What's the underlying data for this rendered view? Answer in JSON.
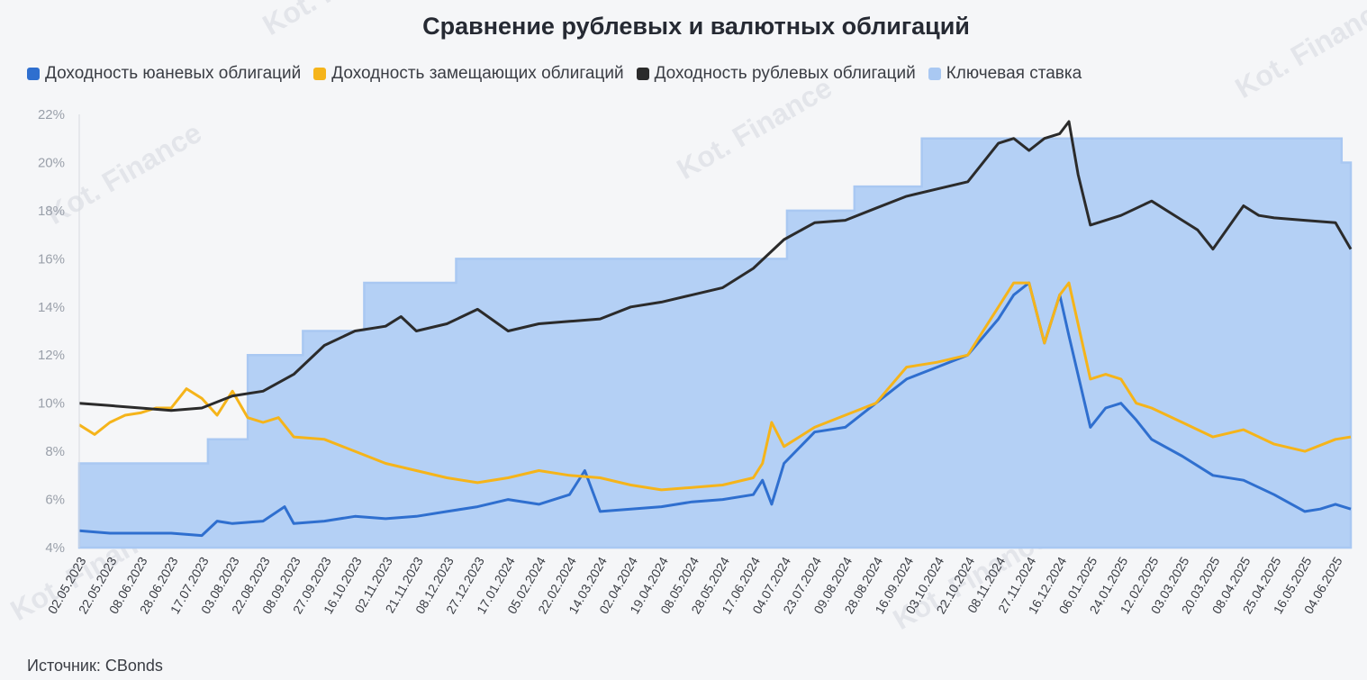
{
  "chart_data": {
    "type": "line",
    "title": "Сравнение рублевых и валютных облигаций",
    "source": "Источник: CBonds",
    "watermark": "Kot. Finance",
    "ylim": [
      4,
      22
    ],
    "y_ticks": [
      "4%",
      "6%",
      "8%",
      "10%",
      "12%",
      "14%",
      "16%",
      "18%",
      "20%",
      "22%"
    ],
    "x_tick_labels": [
      "02.05.2023",
      "22.05.2023",
      "08.06.2023",
      "28.06.2023",
      "17.07.2023",
      "03.08.2023",
      "22.08.2023",
      "08.09.2023",
      "27.09.2023",
      "16.10.2023",
      "02.11.2023",
      "21.11.2023",
      "08.12.2023",
      "27.12.2023",
      "17.01.2024",
      "05.02.2024",
      "22.02.2024",
      "14.03.2024",
      "02.04.2024",
      "19.04.2024",
      "08.05.2024",
      "28.05.2024",
      "17.06.2024",
      "04.07.2024",
      "23.07.2024",
      "09.08.2024",
      "28.08.2024",
      "16.09.2024",
      "03.10.2024",
      "22.10.2024",
      "08.11.2024",
      "27.11.2024",
      "16.12.2024",
      "06.01.2025",
      "24.01.2025",
      "12.02.2025",
      "03.03.2025",
      "20.03.2025",
      "08.04.2025",
      "25.04.2025",
      "16.05.2025",
      "04.06.2025"
    ],
    "x_index_max": 41.5,
    "legend_position": "top-left",
    "grid": false,
    "series": [
      {
        "name": "Доходность юаневых облигаций",
        "color": "#2f6fcf",
        "x": [
          0,
          1,
          2,
          3,
          4,
          4.5,
          5,
          6,
          6.7,
          7,
          8,
          9,
          10,
          11,
          12,
          13,
          14,
          15,
          16,
          16.5,
          17,
          18,
          19,
          20,
          21,
          22,
          22.3,
          22.6,
          23,
          24,
          25,
          26,
          27,
          28,
          29,
          30,
          30.5,
          31,
          31.5,
          32,
          32.3,
          33,
          33.5,
          34,
          34.5,
          35,
          36,
          37,
          38,
          39,
          40,
          40.5,
          41,
          41.5
        ],
        "values": [
          4.7,
          4.6,
          4.6,
          4.6,
          4.5,
          5.1,
          5.0,
          5.1,
          5.7,
          5.0,
          5.1,
          5.3,
          5.2,
          5.3,
          5.5,
          5.7,
          6.0,
          5.8,
          6.2,
          7.2,
          5.5,
          5.6,
          5.7,
          5.9,
          6.0,
          6.2,
          6.8,
          5.8,
          7.5,
          8.8,
          9.0,
          10.0,
          11.0,
          11.5,
          12.0,
          13.5,
          14.5,
          15.0,
          12.5,
          14.5,
          12.8,
          9.0,
          9.8,
          10.0,
          9.3,
          8.5,
          7.8,
          7.0,
          6.8,
          6.2,
          5.5,
          5.6,
          5.8,
          5.6
        ]
      },
      {
        "name": "Доходность замещающих облигаций",
        "color": "#f5b41a",
        "x": [
          0,
          0.5,
          1,
          1.5,
          2,
          2.5,
          3,
          3.5,
          4,
          4.5,
          5,
          5.5,
          6,
          6.5,
          7,
          8,
          9,
          10,
          11,
          12,
          13,
          14,
          15,
          16,
          17,
          18,
          19,
          20,
          21,
          22,
          22.3,
          22.6,
          23,
          24,
          25,
          26,
          27,
          28,
          29,
          30,
          30.5,
          31,
          31.5,
          32,
          32.3,
          33,
          33.5,
          34,
          34.5,
          35,
          36,
          37,
          38,
          39,
          40,
          41,
          41.5
        ],
        "values": [
          9.1,
          8.7,
          9.2,
          9.5,
          9.6,
          9.8,
          9.8,
          10.6,
          10.2,
          9.5,
          10.5,
          9.4,
          9.2,
          9.4,
          8.6,
          8.5,
          8.0,
          7.5,
          7.2,
          6.9,
          6.7,
          6.9,
          7.2,
          7.0,
          6.9,
          6.6,
          6.4,
          6.5,
          6.6,
          6.9,
          7.5,
          9.2,
          8.2,
          9.0,
          9.5,
          10.0,
          11.5,
          11.7,
          12.0,
          14.0,
          15.0,
          15.0,
          12.5,
          14.5,
          15.0,
          11.0,
          11.2,
          11.0,
          10.0,
          9.8,
          9.2,
          8.6,
          8.9,
          8.3,
          8.0,
          8.5,
          8.6
        ]
      },
      {
        "name": "Доходность рублевых облигаций",
        "color": "#2b2b2b",
        "x": [
          0,
          1,
          2,
          3,
          4,
          5,
          6,
          7,
          8,
          9,
          10,
          10.5,
          11,
          12,
          13,
          14,
          15,
          16,
          17,
          18,
          19,
          20,
          21,
          22,
          23,
          24,
          25,
          26,
          27,
          28,
          29,
          30,
          30.5,
          31,
          31.5,
          32,
          32.3,
          32.6,
          33,
          34,
          35,
          36,
          36.5,
          37,
          38,
          38.5,
          39,
          40,
          41,
          41.5
        ],
        "values": [
          10.0,
          9.9,
          9.8,
          9.7,
          9.8,
          10.3,
          10.5,
          11.2,
          12.4,
          13.0,
          13.2,
          13.6,
          13.0,
          13.3,
          13.9,
          13.0,
          13.3,
          13.4,
          13.5,
          14.0,
          14.2,
          14.5,
          14.8,
          15.6,
          16.8,
          17.5,
          17.6,
          18.1,
          18.6,
          18.9,
          19.2,
          20.8,
          21.0,
          20.5,
          21.0,
          21.2,
          21.7,
          19.5,
          17.4,
          17.8,
          18.4,
          17.6,
          17.2,
          16.4,
          18.2,
          17.8,
          17.7,
          17.6,
          17.5,
          16.4
        ]
      },
      {
        "name": "Ключевая ставка",
        "color": "#a9c8f2",
        "x": [
          0,
          4.2,
          4.2,
          5.5,
          5.5,
          7.3,
          7.3,
          9.3,
          9.3,
          12.3,
          12.3,
          23.1,
          23.1,
          25.3,
          25.3,
          27.5,
          27.5,
          30.1,
          30.1,
          41.2,
          41.2,
          41.5
        ],
        "values": [
          7.5,
          7.5,
          8.5,
          8.5,
          12.0,
          12.0,
          13.0,
          13.0,
          15.0,
          15.0,
          16.0,
          16.0,
          18.0,
          18.0,
          19.0,
          19.0,
          21.0,
          21.0,
          21.0,
          21.0,
          20.0,
          20.0
        ]
      }
    ]
  }
}
